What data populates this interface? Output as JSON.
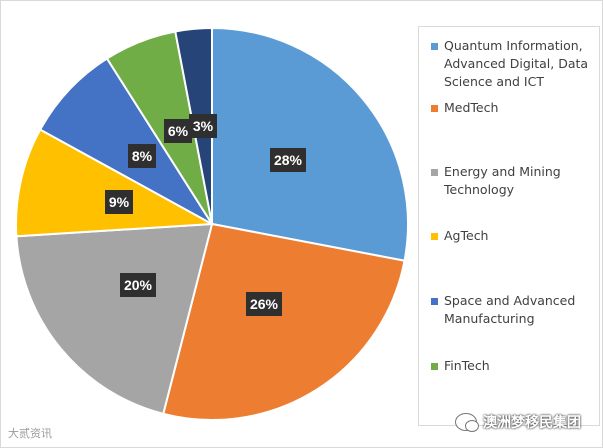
{
  "chart_data": {
    "type": "pie",
    "start_angle_deg": 0,
    "direction": "clockwise",
    "slices": [
      {
        "label": "Quantum Information, Advanced Digital, Data Science and ICT",
        "value": 28,
        "data_label": "28%",
        "color": "#5b9bd5"
      },
      {
        "label": "MedTech",
        "value": 26,
        "data_label": "26%",
        "color": "#ed7d31"
      },
      {
        "label": "Energy and Mining Technology",
        "value": 20,
        "data_label": "20%",
        "color": "#a5a5a5"
      },
      {
        "label": "AgTech",
        "value": 9,
        "data_label": "9%",
        "color": "#ffc000"
      },
      {
        "label": "Space and Advanced Manufacturing",
        "value": 8,
        "data_label": "8%",
        "color": "#4472c4"
      },
      {
        "label": "FinTech",
        "value": 6,
        "data_label": "6%",
        "color": "#70ad47"
      },
      {
        "label": "",
        "value": 3,
        "data_label": "3%",
        "color": "#264478"
      }
    ],
    "legend_position": "right"
  },
  "legend": {
    "items": [
      {
        "text": "Quantum Information, Advanced Digital, Data Science and ICT",
        "color": "#5b9bd5"
      },
      {
        "text": "MedTech",
        "color": "#ed7d31"
      },
      {
        "text": "Energy and Mining Technology",
        "color": "#a5a5a5"
      },
      {
        "text": "AgTech",
        "color": "#ffc000"
      },
      {
        "text": "Space and Advanced Manufacturing",
        "color": "#4472c4"
      },
      {
        "text": "FinTech",
        "color": "#70ad47"
      }
    ]
  },
  "watermarks": {
    "left": "大贰资讯",
    "right": "澳洲梦移民集团"
  }
}
